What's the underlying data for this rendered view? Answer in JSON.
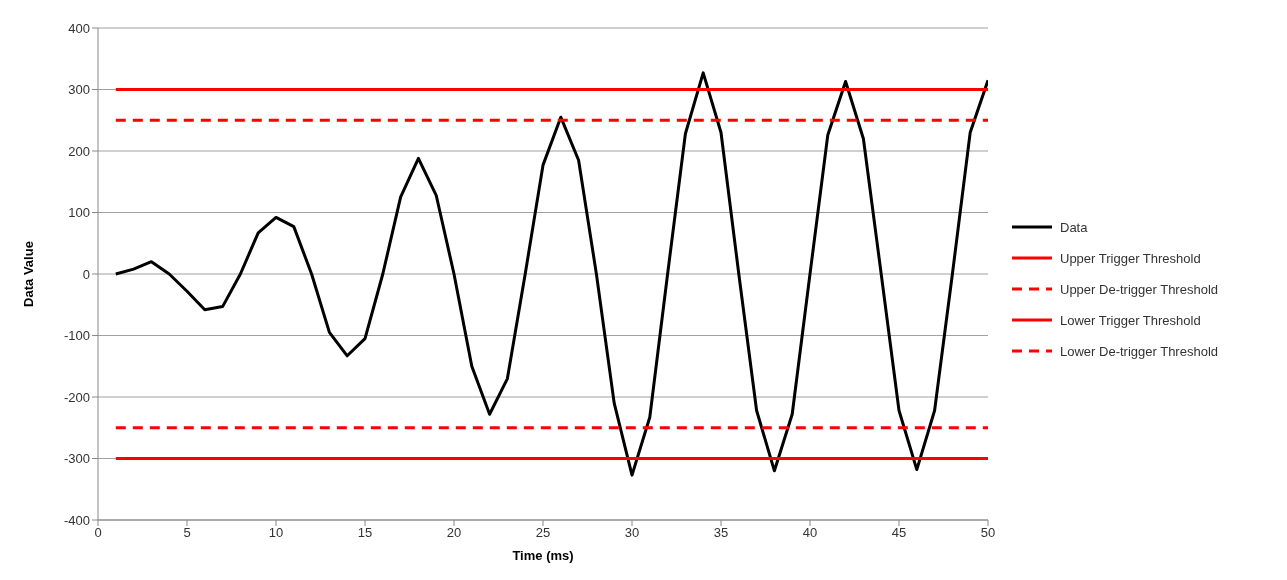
{
  "chart_data": {
    "type": "line",
    "xlabel": "Time (ms)",
    "ylabel": "Data Value",
    "x": [
      1,
      2,
      3,
      4,
      5,
      6,
      7,
      8,
      9,
      10,
      11,
      12,
      13,
      14,
      15,
      16,
      17,
      18,
      19,
      20,
      21,
      22,
      23,
      24,
      25,
      26,
      27,
      28,
      29,
      30,
      31,
      32,
      33,
      34,
      35,
      36,
      37,
      38,
      39,
      40,
      41,
      42,
      43,
      44,
      45,
      46,
      47,
      48,
      49,
      50
    ],
    "series": [
      {
        "name": "Data",
        "color": "#000000",
        "values": [
          0,
          8,
          20,
          0,
          -28,
          -58,
          -53,
          0,
          67,
          92,
          77,
          0,
          -95,
          -133,
          -105,
          0,
          125,
          188,
          128,
          0,
          -150,
          -228,
          -170,
          0,
          177,
          255,
          185,
          0,
          -210,
          -327,
          -233,
          0,
          228,
          327,
          230,
          0,
          -222,
          -320,
          -228,
          0,
          226,
          313,
          220,
          0,
          -222,
          -318,
          -222,
          0,
          230,
          315
        ]
      },
      {
        "name": "Upper Trigger Threshold",
        "color": "#ff0000",
        "values": [
          300,
          300,
          300,
          300,
          300,
          300,
          300,
          300,
          300,
          300,
          300,
          300,
          300,
          300,
          300,
          300,
          300,
          300,
          300,
          300,
          300,
          300,
          300,
          300,
          300,
          300,
          300,
          300,
          300,
          300,
          300,
          300,
          300,
          300,
          300,
          300,
          300,
          300,
          300,
          300,
          300,
          300,
          300,
          300,
          300,
          300,
          300,
          300,
          300,
          300
        ],
        "line_style": "solid"
      },
      {
        "name": "Upper De-trigger Threshold",
        "color": "#ff0000",
        "values": [
          250,
          250,
          250,
          250,
          250,
          250,
          250,
          250,
          250,
          250,
          250,
          250,
          250,
          250,
          250,
          250,
          250,
          250,
          250,
          250,
          250,
          250,
          250,
          250,
          250,
          250,
          250,
          250,
          250,
          250,
          250,
          250,
          250,
          250,
          250,
          250,
          250,
          250,
          250,
          250,
          250,
          250,
          250,
          250,
          250,
          250,
          250,
          250,
          250,
          250
        ],
        "line_style": "dashed"
      },
      {
        "name": "Lower Trigger Threshold",
        "color": "#ff0000",
        "values": [
          -300,
          -300,
          -300,
          -300,
          -300,
          -300,
          -300,
          -300,
          -300,
          -300,
          -300,
          -300,
          -300,
          -300,
          -300,
          -300,
          -300,
          -300,
          -300,
          -300,
          -300,
          -300,
          -300,
          -300,
          -300,
          -300,
          -300,
          -300,
          -300,
          -300,
          -300,
          -300,
          -300,
          -300,
          -300,
          -300,
          -300,
          -300,
          -300,
          -300,
          -300,
          -300,
          -300,
          -300,
          -300,
          -300,
          -300,
          -300,
          -300,
          -300
        ],
        "line_style": "solid"
      },
      {
        "name": "Lower De-trigger Threshold",
        "color": "#ff0000",
        "values": [
          -250,
          -250,
          -250,
          -250,
          -250,
          -250,
          -250,
          -250,
          -250,
          -250,
          -250,
          -250,
          -250,
          -250,
          -250,
          -250,
          -250,
          -250,
          -250,
          -250,
          -250,
          -250,
          -250,
          -250,
          -250,
          -250,
          -250,
          -250,
          -250,
          -250,
          -250,
          -250,
          -250,
          -250,
          -250,
          -250,
          -250,
          -250,
          -250,
          -250,
          -250,
          -250,
          -250,
          -250,
          -250,
          -250,
          -250,
          -250,
          -250,
          -250
        ],
        "line_style": "dashed"
      }
    ],
    "xlim": [
      0,
      50
    ],
    "xticks": [
      0,
      5,
      10,
      15,
      20,
      25,
      30,
      35,
      40,
      45,
      50
    ],
    "ylim": [
      -400,
      400
    ],
    "yticks": [
      -400,
      -300,
      -200,
      -100,
      0,
      100,
      200,
      300,
      400
    ],
    "grid": "y",
    "legend": "right",
    "marker": "none",
    "line_style": "solid"
  }
}
